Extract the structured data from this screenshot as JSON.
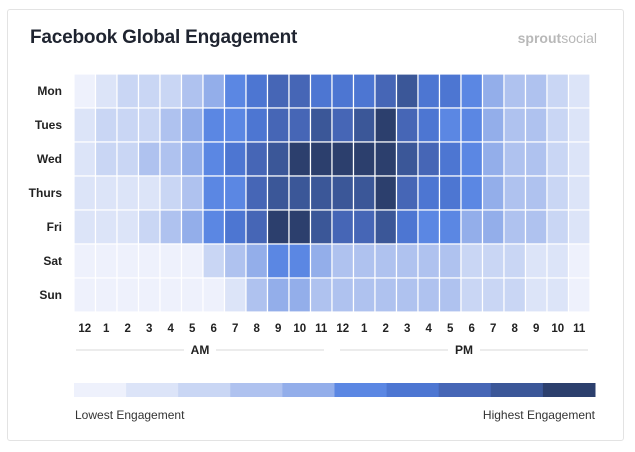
{
  "chart_data": {
    "type": "heatmap",
    "title": "Facebook Global Engagement",
    "brand": {
      "part1": "sprout",
      "part2": "social"
    },
    "rows": [
      "Mon",
      "Tues",
      "Wed",
      "Thurs",
      "Fri",
      "Sat",
      "Sun"
    ],
    "columns": [
      "12",
      "1",
      "2",
      "3",
      "4",
      "5",
      "6",
      "7",
      "8",
      "9",
      "10",
      "11",
      "12",
      "1",
      "2",
      "3",
      "4",
      "5",
      "6",
      "7",
      "8",
      "9",
      "10",
      "11"
    ],
    "periods": [
      "AM",
      "PM"
    ],
    "values": [
      [
        0,
        1,
        2,
        2,
        2,
        3,
        4,
        5,
        6,
        7,
        7,
        6,
        6,
        6,
        7,
        8,
        6,
        6,
        5,
        4,
        3,
        3,
        2,
        1
      ],
      [
        1,
        2,
        2,
        2,
        3,
        4,
        5,
        5,
        6,
        7,
        7,
        8,
        7,
        8,
        9,
        7,
        6,
        5,
        5,
        4,
        3,
        3,
        2,
        1
      ],
      [
        1,
        2,
        2,
        3,
        3,
        4,
        5,
        6,
        7,
        8,
        9,
        9,
        9,
        9,
        9,
        8,
        7,
        6,
        5,
        4,
        3,
        3,
        2,
        1
      ],
      [
        1,
        1,
        1,
        1,
        2,
        3,
        5,
        5,
        7,
        8,
        8,
        8,
        8,
        8,
        9,
        7,
        6,
        6,
        5,
        4,
        3,
        3,
        2,
        1
      ],
      [
        1,
        1,
        1,
        2,
        3,
        4,
        5,
        6,
        7,
        9,
        9,
        8,
        7,
        7,
        8,
        6,
        5,
        5,
        4,
        4,
        3,
        3,
        2,
        1
      ],
      [
        0,
        0,
        0,
        0,
        0,
        0,
        2,
        3,
        4,
        5,
        5,
        4,
        3,
        3,
        3,
        3,
        3,
        3,
        2,
        2,
        2,
        1,
        1,
        0
      ],
      [
        0,
        0,
        0,
        0,
        0,
        0,
        0,
        1,
        3,
        4,
        4,
        3,
        3,
        3,
        3,
        3,
        3,
        3,
        2,
        2,
        2,
        1,
        1,
        0
      ]
    ],
    "scale_colors": [
      "#eef1fc",
      "#dce4f8",
      "#c9d6f4",
      "#afc2ef",
      "#93aeea",
      "#5b87e3",
      "#4d76d2",
      "#4666b6",
      "#3b5798",
      "#2c3f6d"
    ],
    "legend": {
      "low": "Lowest Engagement",
      "high": "Highest Engagement"
    },
    "grid": false
  }
}
